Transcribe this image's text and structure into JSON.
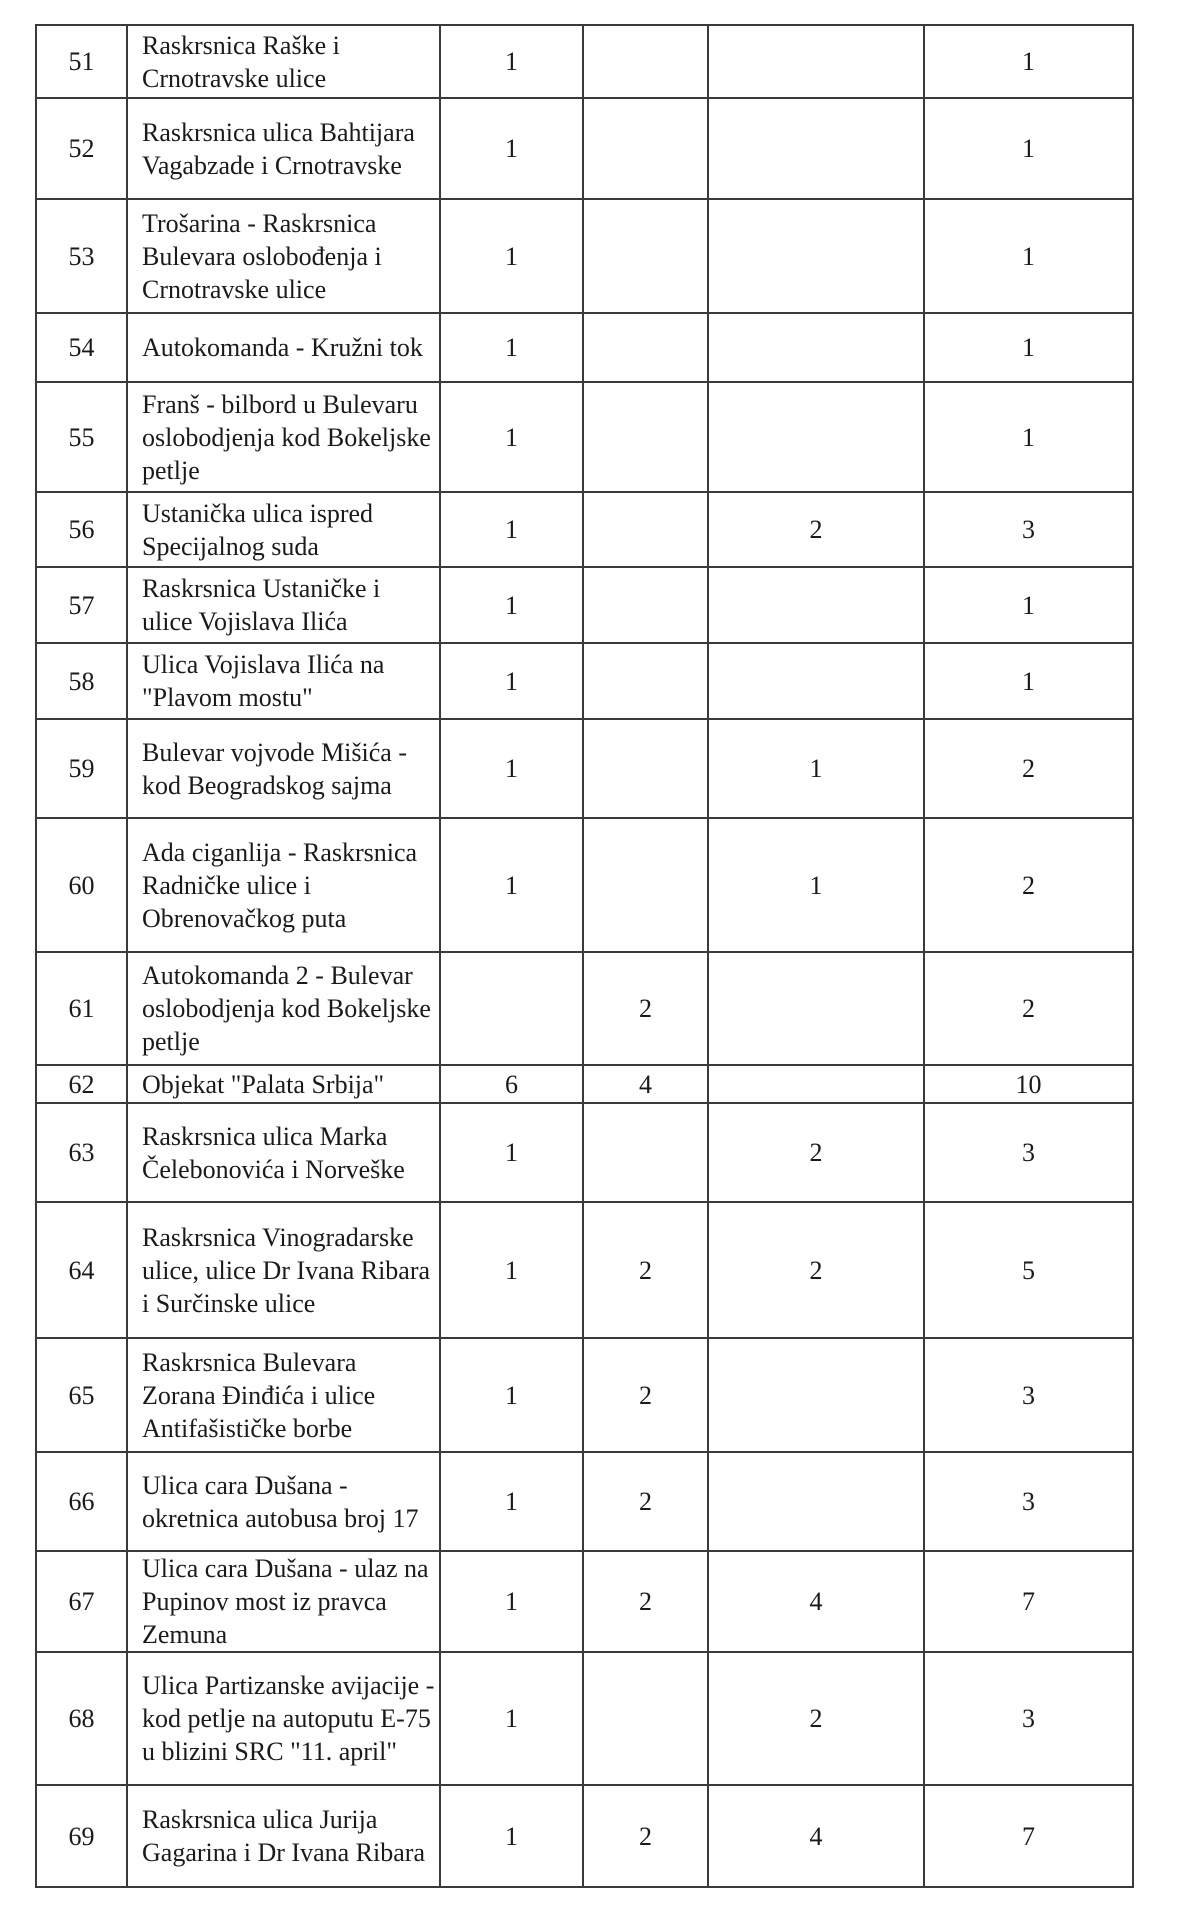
{
  "rows": [
    {
      "no": "51",
      "location": "Raskrsnica Raške i Crnotravske ulice",
      "c1": "1",
      "c2": "",
      "c3": "",
      "total": "1"
    },
    {
      "no": "52",
      "location": "Raskrsnica ulica Bahtijara Vagabzade i Crnotravske",
      "c1": "1",
      "c2": "",
      "c3": "",
      "total": "1"
    },
    {
      "no": "53",
      "location": "Trošarina - Raskrsnica Bulevara oslobođenja i Crnotravske ulice",
      "c1": "1",
      "c2": "",
      "c3": "",
      "total": "1"
    },
    {
      "no": "54",
      "location": "Autokomanda - Kružni tok",
      "c1": "1",
      "c2": "",
      "c3": "",
      "total": "1"
    },
    {
      "no": "55",
      "location": "Franš - bilbord u Bulevaru oslobodjenja kod Bokeljske petlje",
      "c1": "1",
      "c2": "",
      "c3": "",
      "total": "1"
    },
    {
      "no": "56",
      "location": "Ustanička ulica ispred Specijalnog suda",
      "c1": "1",
      "c2": "",
      "c3": "2",
      "total": "3"
    },
    {
      "no": "57",
      "location": "Raskrsnica Ustaničke  i ulice Vojislava Ilića",
      "c1": "1",
      "c2": "",
      "c3": "",
      "total": "1"
    },
    {
      "no": "58",
      "location": "Ulica Vojislava Ilića na \"Plavom mostu\"",
      "c1": "1",
      "c2": "",
      "c3": "",
      "total": "1"
    },
    {
      "no": "59",
      "location": "Bulevar vojvode Mišića - kod Beogradskog sajma",
      "c1": "1",
      "c2": "",
      "c3": "1",
      "total": "2"
    },
    {
      "no": "60",
      "location": "Ada ciganlija - Raskrsnica Radničke ulice  i Obrenovačkog puta",
      "c1": "1",
      "c2": "",
      "c3": "1",
      "total": "2"
    },
    {
      "no": "61",
      "location": "Autokomanda 2 - Bulevar oslobodjenja kod Bokeljske petlje",
      "c1": "",
      "c2": "2",
      "c3": "",
      "total": "2"
    },
    {
      "no": "62",
      "location": "Objekat \"Palata Srbija\"",
      "c1": "6",
      "c2": "4",
      "c3": "",
      "total": "10"
    },
    {
      "no": "63",
      "location": "Raskrsnica ulica Marka Čelebonovića i Norveške",
      "c1": "1",
      "c2": "",
      "c3": "2",
      "total": "3"
    },
    {
      "no": "64",
      "location": "Raskrsnica Vinogradarske ulice, ulice Dr Ivana Ribara i Surčinske ulice",
      "c1": "1",
      "c2": "2",
      "c3": "2",
      "total": "5"
    },
    {
      "no": "65",
      "location": "Raskrsnica Bulevara Zorana Đinđića i ulice Antifašističke borbe",
      "c1": "1",
      "c2": "2",
      "c3": "",
      "total": "3"
    },
    {
      "no": "66",
      "location": "Ulica cara Dušana - okretnica autobusa broj 17",
      "c1": "1",
      "c2": "2",
      "c3": "",
      "total": "3"
    },
    {
      "no": "67",
      "location": "Ulica cara Dušana - ulaz na Pupinov most iz pravca Zemuna",
      "c1": "1",
      "c2": "2",
      "c3": "4",
      "total": "7"
    },
    {
      "no": "68",
      "location": "Ulica Partizanske avijacije - kod petlje na autoputu E-75 u blizini SRC \"11. april\"",
      "c1": "1",
      "c2": "",
      "c3": "2",
      "total": "3"
    },
    {
      "no": "69",
      "location": "Raskrsnica ulica Jurija Gagarina i Dr Ivana Ribara",
      "c1": "1",
      "c2": "2",
      "c3": "4",
      "total": "7"
    }
  ]
}
